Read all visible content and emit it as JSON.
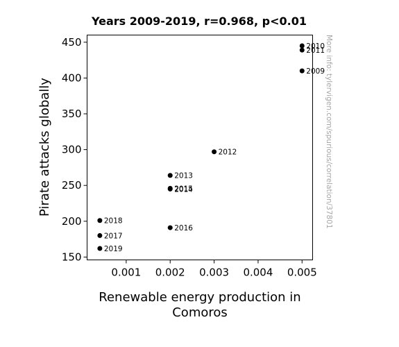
{
  "chart_data": {
    "type": "scatter",
    "title": "Years 2009-2019, r=0.968, p<0.01",
    "xlabel_lines": [
      "Renewable energy production in",
      "Comoros"
    ],
    "ylabel": "Pirate attacks globally",
    "xlim": [
      0.00011,
      0.00524
    ],
    "ylim": [
      146,
      460
    ],
    "xticks": [
      0.001,
      0.002,
      0.003,
      0.004,
      0.005
    ],
    "xtick_labels": [
      "0.001",
      "0.002",
      "0.003",
      "0.004",
      "0.005"
    ],
    "yticks": [
      150,
      200,
      250,
      300,
      350,
      400,
      450
    ],
    "ytick_labels": [
      "150",
      "200",
      "250",
      "300",
      "350",
      "400",
      "450"
    ],
    "grid": false,
    "point_color": "#000000",
    "points": [
      {
        "label": "2009",
        "x": 0.005,
        "y": 410
      },
      {
        "label": "2010",
        "x": 0.005,
        "y": 445
      },
      {
        "label": "2011",
        "x": 0.005,
        "y": 439
      },
      {
        "label": "2012",
        "x": 0.003,
        "y": 297
      },
      {
        "label": "2013",
        "x": 0.002,
        "y": 264
      },
      {
        "label": "2014",
        "x": 0.002,
        "y": 245
      },
      {
        "label": "2015",
        "x": 0.002,
        "y": 246
      },
      {
        "label": "2016",
        "x": 0.002,
        "y": 191
      },
      {
        "label": "2017",
        "x": 0.0004,
        "y": 180
      },
      {
        "label": "2018",
        "x": 0.0004,
        "y": 201
      },
      {
        "label": "2019",
        "x": 0.0004,
        "y": 162
      }
    ]
  },
  "watermark": "More info: tylervigen.com/spurious/correlation/37801"
}
